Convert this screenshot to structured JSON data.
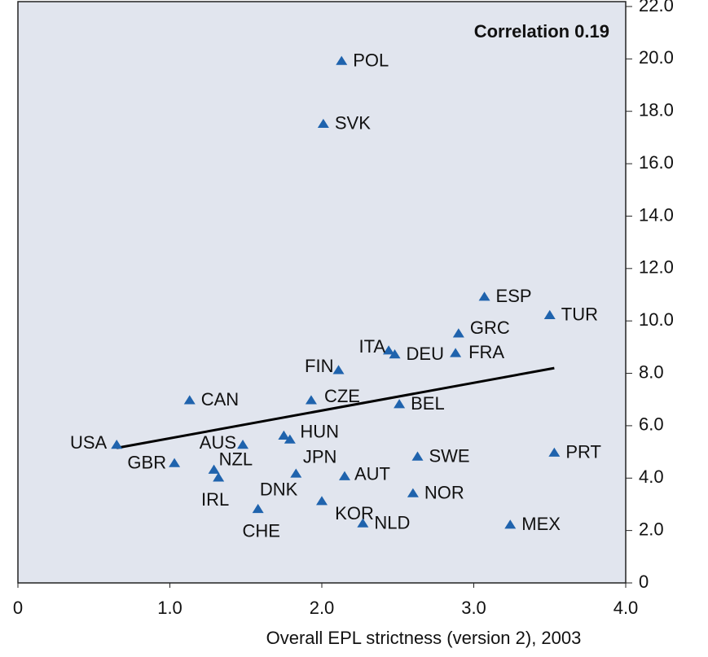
{
  "chart_data": {
    "type": "scatter",
    "annotation": "Correlation 0.19",
    "xlabel": "Overall EPL strictness (version 2), 2003",
    "xlim": [
      0,
      4.0
    ],
    "xticks": [
      0,
      {
        "value": 1,
        "label": "1.0"
      },
      {
        "value": 2,
        "label": "2.0"
      },
      {
        "value": 3,
        "label": "3.0"
      },
      {
        "value": 4,
        "label": "4.0"
      }
    ],
    "ylim": [
      0,
      22
    ],
    "yticks": [
      0,
      {
        "value": 2,
        "label": "2.0"
      },
      {
        "value": 4,
        "label": "4.0"
      },
      {
        "value": 6,
        "label": "6.0"
      },
      {
        "value": 8,
        "label": "8.0"
      },
      {
        "value": 10,
        "label": "10.0"
      },
      {
        "value": 12,
        "label": "12.0"
      },
      {
        "value": 14,
        "label": "14.0"
      },
      {
        "value": 16,
        "label": "16.0"
      },
      {
        "value": 18,
        "label": "18.0"
      },
      {
        "value": 20,
        "label": "20.0"
      },
      {
        "value": 22,
        "label": "22.0"
      }
    ],
    "color": "#1f63ad",
    "labels": [
      "POL",
      "SVK",
      "ESP",
      "TUR",
      "GRC",
      "FRA",
      "ITA",
      "DEU",
      "FIN",
      "CAN",
      "CZE",
      "BEL",
      "HUN",
      "JPN",
      "USA",
      "AUS",
      "PRT",
      "SWE",
      "GBR",
      "NZL",
      "IRL",
      "DNK",
      "AUT",
      "KOR",
      "NOR",
      "CHE",
      "NLD",
      "MEX"
    ],
    "x": [
      2.13,
      2.01,
      3.07,
      3.5,
      2.9,
      2.88,
      2.44,
      2.48,
      2.11,
      1.13,
      1.93,
      2.51,
      1.75,
      1.79,
      0.65,
      1.48,
      3.53,
      2.63,
      1.03,
      1.29,
      1.32,
      1.83,
      2.15,
      2.0,
      2.6,
      1.58,
      2.27,
      3.24
    ],
    "y": [
      19.9,
      17.5,
      10.9,
      10.2,
      9.5,
      8.75,
      8.85,
      8.7,
      8.1,
      6.95,
      6.95,
      6.8,
      5.6,
      5.45,
      5.25,
      5.25,
      4.95,
      4.8,
      4.55,
      4.3,
      4.0,
      4.15,
      4.05,
      3.1,
      3.4,
      2.8,
      2.25,
      2.2
    ],
    "trendline": {
      "color": "#000000",
      "x": [
        0.65,
        3.53
      ],
      "y": [
        5.15,
        8.2
      ]
    }
  }
}
